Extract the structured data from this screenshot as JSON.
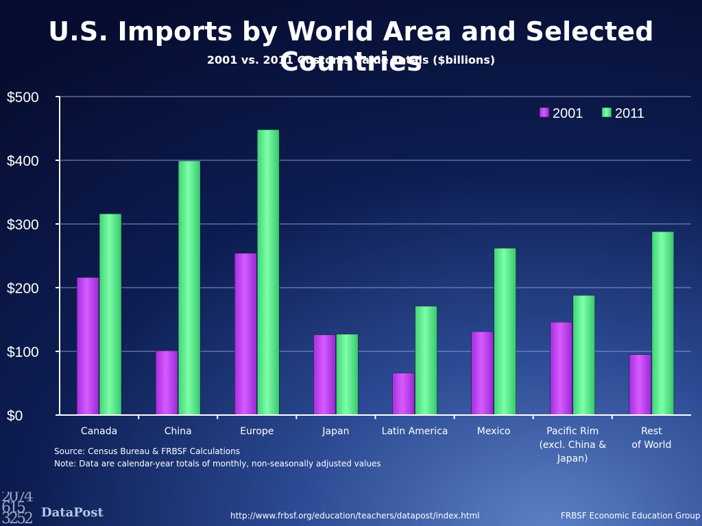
{
  "header": {
    "title": "U.S. Imports by World Area and Selected Countries",
    "subtitle": "2001 vs. 2011 Customs Value Totals ($billions)"
  },
  "chart_data": {
    "type": "bar",
    "categories": [
      [
        "Canada"
      ],
      [
        "China"
      ],
      [
        "Europe"
      ],
      [
        "Japan"
      ],
      [
        "Latin America"
      ],
      [
        "Mexico"
      ],
      [
        "Pacific Rim",
        "(excl. China &",
        "Japan)"
      ],
      [
        "Rest",
        "of World"
      ]
    ],
    "series": [
      {
        "name": "2001",
        "color": "#c040f8",
        "values": [
          216,
          101,
          254,
          126,
          66,
          131,
          146,
          95
        ]
      },
      {
        "name": "2011",
        "color": "#5cf08e",
        "values": [
          316,
          399,
          448,
          127,
          171,
          262,
          188,
          288
        ]
      }
    ],
    "ylim": [
      0,
      500
    ],
    "yticks": [
      0,
      100,
      200,
      300,
      400,
      500
    ],
    "ytick_labels": [
      "$0",
      "$100",
      "$200",
      "$300",
      "$400",
      "$500"
    ],
    "grid": true,
    "legend_position": "top-right"
  },
  "notes": {
    "source": "Source: Census Bureau & FRBSF Calculations",
    "note": "Note: Data are calendar-year totals of monthly, non-seasonally adjusted values"
  },
  "footer": {
    "logo_text": "DataPost",
    "url": "http://www.frbsf.org/education/teachers/datapost/index.html",
    "credit": "FRBSF Economic Education Group"
  }
}
